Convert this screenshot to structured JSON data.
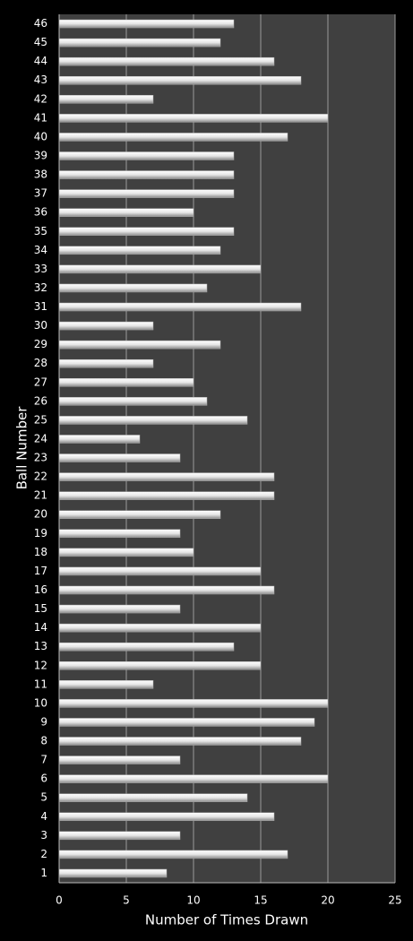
{
  "chart_data": {
    "type": "barh",
    "xlabel": "Number of Times Drawn",
    "ylabel": "Ball Number",
    "categories": [
      "1",
      "2",
      "3",
      "4",
      "5",
      "6",
      "7",
      "8",
      "9",
      "10",
      "11",
      "12",
      "13",
      "14",
      "15",
      "16",
      "17",
      "18",
      "19",
      "20",
      "21",
      "22",
      "23",
      "24",
      "25",
      "26",
      "27",
      "28",
      "29",
      "30",
      "31",
      "32",
      "33",
      "34",
      "35",
      "36",
      "37",
      "38",
      "39",
      "40",
      "41",
      "42",
      "43",
      "44",
      "45",
      "46"
    ],
    "values": [
      8,
      17,
      9,
      16,
      14,
      20,
      9,
      18,
      19,
      20,
      7,
      15,
      13,
      15,
      9,
      16,
      15,
      10,
      9,
      12,
      16,
      16,
      9,
      6,
      14,
      11,
      10,
      7,
      12,
      7,
      18,
      11,
      15,
      12,
      13,
      10,
      13,
      13,
      13,
      17,
      20,
      7,
      18,
      16,
      12,
      13
    ],
    "color": "#e8e8e8",
    "xlim": [
      0,
      25
    ],
    "xticks": [
      0,
      5,
      10,
      15,
      20,
      25
    ],
    "grid": true
  }
}
